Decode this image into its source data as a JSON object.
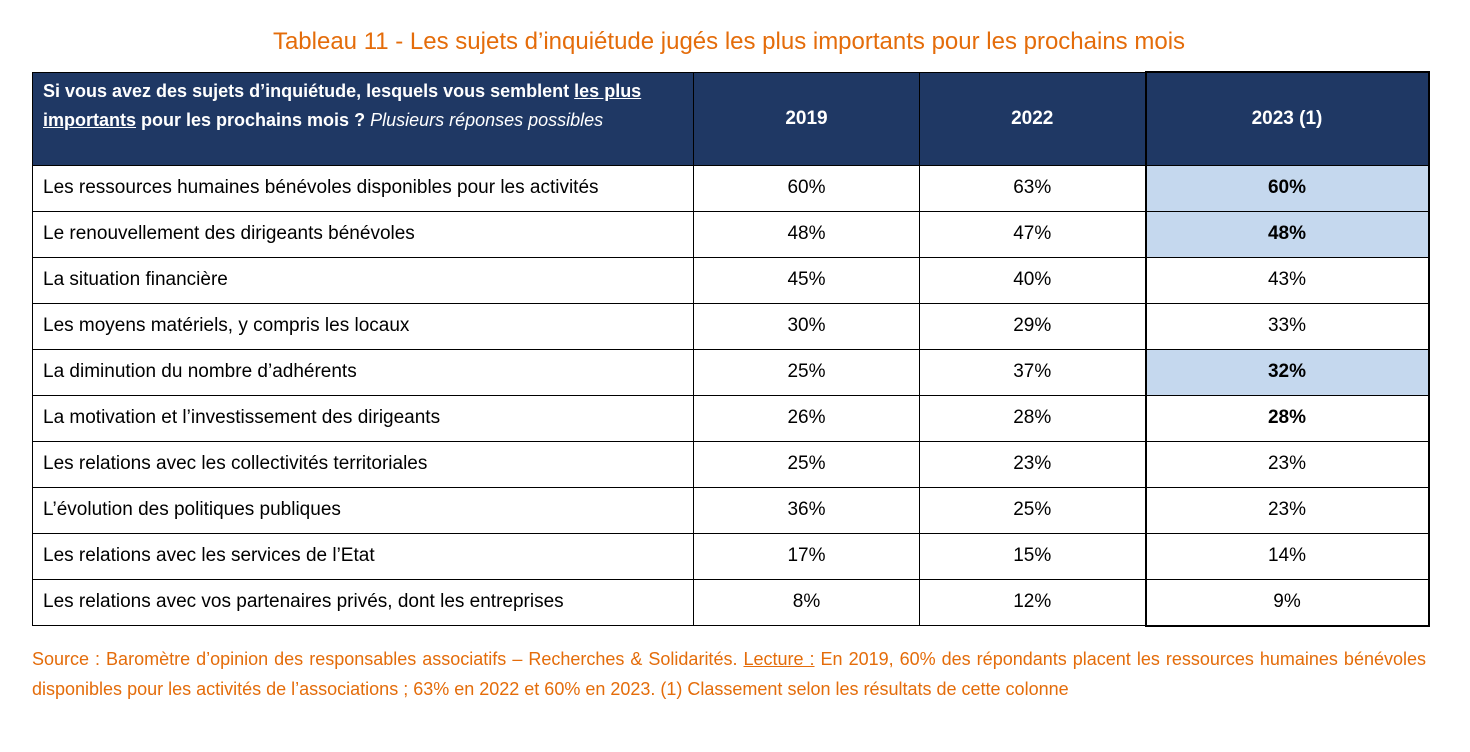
{
  "title": "Tableau 11 - Les sujets d’inquiétude jugés les plus importants pour les prochains mois",
  "table": {
    "question": {
      "part1": "Si vous avez des sujets d’inquiétude, lesquels vous semblent ",
      "underlined": "les plus importants",
      "part2": " pour les prochains mois ? ",
      "italic": "Plusieurs réponses possibles"
    },
    "columns": [
      "2019",
      "2022",
      "2023 (1)"
    ],
    "rows": [
      {
        "label": "Les ressources humaines bénévoles disponibles pour les activités",
        "v2019": "60%",
        "v2022": "63%",
        "v2023": "60%"
      },
      {
        "label": "Le renouvellement des dirigeants bénévoles",
        "v2019": "48%",
        "v2022": "47%",
        "v2023": "48%"
      },
      {
        "label": "La situation financière",
        "v2019": "45%",
        "v2022": "40%",
        "v2023": "43%"
      },
      {
        "label": "Les moyens matériels, y compris les locaux",
        "v2019": "30%",
        "v2022": "29%",
        "v2023": "33%"
      },
      {
        "label": "La diminution du nombre d’adhérents",
        "v2019": "25%",
        "v2022": "37%",
        "v2023": "32%"
      },
      {
        "label": "La motivation et l’investissement des dirigeants",
        "v2019": "26%",
        "v2022": "28%",
        "v2023": "28%"
      },
      {
        "label": "Les relations avec les collectivités territoriales",
        "v2019": "25%",
        "v2022": "23%",
        "v2023": "23%"
      },
      {
        "label": "L’évolution des politiques publiques",
        "v2019": "36%",
        "v2022": "25%",
        "v2023": "23%"
      },
      {
        "label": "Les relations avec les services de l’Etat",
        "v2019": "17%",
        "v2022": "15%",
        "v2023": "14%"
      },
      {
        "label": "Les relations avec vos partenaires privés, dont les entreprises",
        "v2019": "8%",
        "v2022": "12%",
        "v2023": "9%"
      }
    ]
  },
  "source": {
    "text1": "Source : Baromètre d’opinion des responsables associatifs – Recherches & Solidarités. ",
    "reading_label": "Lecture :",
    "text2": " En 2019, 60% des répondants placent les ressources humaines bénévoles disponibles pour les activités de l’associations ; 63% en 2022 et 60% en 2023. (1) Classement selon les résultats de cette colonne"
  },
  "colors": {
    "title_orange": "#e46c0a",
    "header_navy": "#1f3864",
    "highlight_blue": "#c5d8ee"
  }
}
